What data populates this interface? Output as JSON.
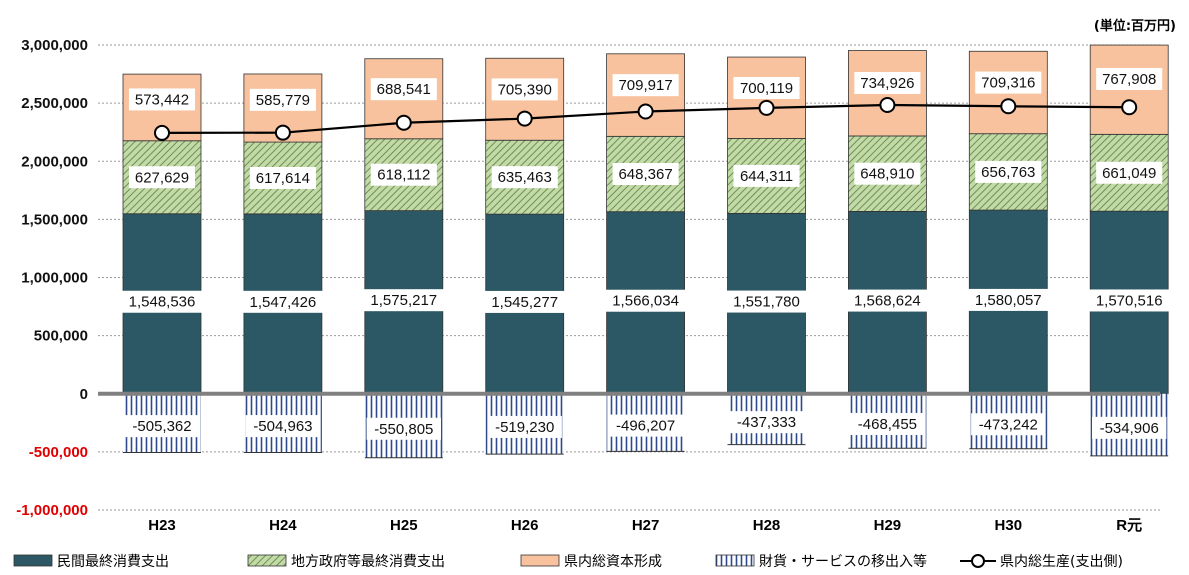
{
  "unit_label": "(単位:百万円)",
  "colors": {
    "private": "#2b5864",
    "gov": "#c2d9a8",
    "gov_hatch": "#6f8f50",
    "capital": "#f7c29d",
    "net": "#ffffff",
    "net_stripe": "#2f4a8a",
    "line": "#000000",
    "negative_tick": "#e00000",
    "zero_line": "#808080"
  },
  "chart_data": {
    "type": "bar",
    "stacked": true,
    "categories": [
      "H23",
      "H24",
      "H25",
      "H26",
      "H27",
      "H28",
      "H29",
      "H30",
      "R元"
    ],
    "series": [
      {
        "key": "private",
        "name": "民間最終消費支出",
        "values": [
          1548536,
          1547426,
          1575217,
          1545277,
          1566034,
          1551780,
          1568624,
          1580057,
          1570516
        ]
      },
      {
        "key": "gov",
        "name": "地方政府等最終消費支出",
        "values": [
          627629,
          617614,
          618112,
          635463,
          648367,
          644311,
          648910,
          656763,
          661049
        ]
      },
      {
        "key": "capital",
        "name": "県内総資本形成",
        "values": [
          573442,
          585779,
          688541,
          705390,
          709917,
          700119,
          734926,
          709316,
          767908
        ]
      },
      {
        "key": "net",
        "name": "財貨・サービスの移出入等",
        "values": [
          -505362,
          -504963,
          -550805,
          -519230,
          -496207,
          -437333,
          -468455,
          -473242,
          -534906
        ]
      }
    ],
    "line_series": {
      "name": "県内総生産(支出側)",
      "values": [
        2244245,
        2245856,
        2331065,
        2366900,
        2428111,
        2458877,
        2484005,
        2472894,
        2464567
      ]
    },
    "data_labels": {
      "private": [
        "1,548,536",
        "1,547,426",
        "1,575,217",
        "1,545,277",
        "1,566,034",
        "1,551,780",
        "1,568,624",
        "1,580,057",
        "1,570,516"
      ],
      "gov": [
        "627,629",
        "617,614",
        "618,112",
        "635,463",
        "648,367",
        "644,311",
        "648,910",
        "656,763",
        "661,049"
      ],
      "capital": [
        "573,442",
        "585,779",
        "688,541",
        "705,390",
        "709,917",
        "700,119",
        "734,926",
        "709,316",
        "767,908"
      ],
      "net": [
        "-505,362",
        "-504,963",
        "-550,805",
        "-519,230",
        "-496,207",
        "-437,333",
        "-468,455",
        "-473,242",
        "-534,906"
      ]
    },
    "yticks": [
      3000000,
      2500000,
      2000000,
      1500000,
      1000000,
      500000,
      0,
      -500000,
      -1000000
    ],
    "ytick_labels": [
      "3,000,000",
      "2,500,000",
      "2,000,000",
      "1,500,000",
      "1,000,000",
      "500,000",
      "0",
      "-500,000",
      "-1,000,000"
    ],
    "ylim": [
      -1000000,
      3000000
    ],
    "grid": true,
    "legend_position": "bottom"
  }
}
